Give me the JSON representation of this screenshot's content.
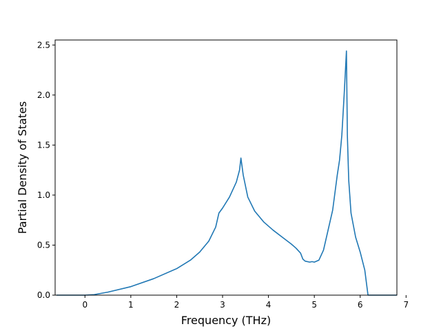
{
  "chart_data": {
    "type": "line",
    "title": "",
    "xlabel": "Frequency (THz)",
    "ylabel": "Partial Density of States",
    "xlim": [
      -0.65,
      6.8
    ],
    "ylim": [
      0.0,
      2.55
    ],
    "xticks": [
      0,
      1,
      2,
      3,
      4,
      5,
      6,
      7
    ],
    "yticks": [
      0.0,
      0.5,
      1.0,
      1.5,
      2.0,
      2.5
    ],
    "xtick_labels": [
      "0",
      "1",
      "2",
      "3",
      "4",
      "5",
      "6",
      "7"
    ],
    "ytick_labels": [
      "0.0",
      "0.5",
      "1.0",
      "1.5",
      "2.0",
      "2.5"
    ],
    "grid": false,
    "legend": "none",
    "line_color": "#1f77b4",
    "series": [
      {
        "x": [
          -0.62,
          0.0,
          0.2,
          0.5,
          1.0,
          1.5,
          2.0,
          2.3,
          2.5,
          2.7,
          2.85,
          2.92,
          3.0,
          3.15,
          3.3,
          3.37,
          3.4,
          3.45,
          3.55,
          3.7,
          3.9,
          4.1,
          4.3,
          4.5,
          4.6,
          4.7,
          4.75,
          4.8,
          4.9,
          4.95,
          5.0,
          5.1,
          5.2,
          5.3,
          5.4,
          5.5,
          5.55,
          5.6,
          5.65,
          5.7,
          5.72,
          5.75,
          5.8,
          5.9,
          6.0,
          6.1,
          6.17,
          6.2,
          6.8
        ],
        "y": [
          0.0,
          0.0,
          0.005,
          0.03,
          0.085,
          0.165,
          0.265,
          0.35,
          0.43,
          0.54,
          0.68,
          0.82,
          0.87,
          0.98,
          1.13,
          1.25,
          1.37,
          1.2,
          0.98,
          0.84,
          0.73,
          0.65,
          0.58,
          0.51,
          0.47,
          0.42,
          0.36,
          0.34,
          0.33,
          0.335,
          0.33,
          0.35,
          0.45,
          0.65,
          0.85,
          1.2,
          1.35,
          1.6,
          2.0,
          2.44,
          1.6,
          1.15,
          0.82,
          0.58,
          0.43,
          0.25,
          0.0,
          0.0,
          0.0
        ]
      }
    ]
  }
}
